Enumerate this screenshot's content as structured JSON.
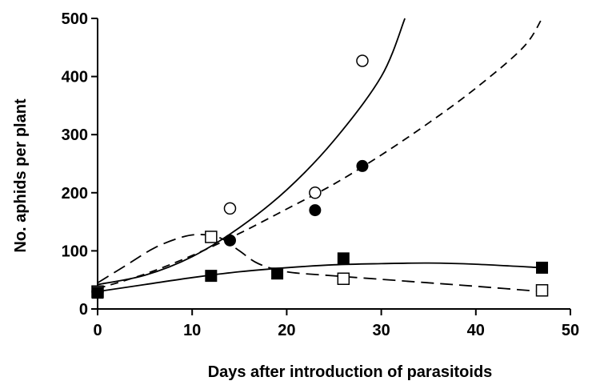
{
  "chart_data": {
    "type": "scatter",
    "title": "",
    "xlabel": "Days after introduction of parasitoids",
    "ylabel": "No. aphids per plant",
    "xlim": [
      0,
      50
    ],
    "ylim": [
      0,
      500
    ],
    "x_ticks": [
      0,
      10,
      20,
      30,
      40,
      50
    ],
    "y_ticks": [
      0,
      100,
      200,
      300,
      400,
      500
    ],
    "x_tick_labels": [
      "0",
      "10",
      "20",
      "30",
      "40",
      "50"
    ],
    "y_tick_labels": [
      "0",
      "100",
      "200",
      "300",
      "400",
      "500"
    ],
    "grid": false,
    "legend": "none",
    "series": [
      {
        "marker": "open-circle",
        "line_style": "solid",
        "color": "#000000",
        "points": [
          {
            "x": 0,
            "y": 30
          },
          {
            "x": 14,
            "y": 173
          },
          {
            "x": 23,
            "y": 200
          },
          {
            "x": 28,
            "y": 427
          }
        ],
        "fit": [
          [
            0,
            42
          ],
          [
            5,
            58
          ],
          [
            10,
            90
          ],
          [
            15,
            140
          ],
          [
            20,
            205
          ],
          [
            25,
            290
          ],
          [
            30,
            400
          ],
          [
            32.5,
            500
          ]
        ]
      },
      {
        "marker": "filled-circle",
        "line_style": "dashed",
        "color": "#000000",
        "points": [
          {
            "x": 0,
            "y": 30
          },
          {
            "x": 14,
            "y": 118
          },
          {
            "x": 23,
            "y": 170
          },
          {
            "x": 28,
            "y": 246
          }
        ],
        "fit": [
          [
            0,
            35
          ],
          [
            5,
            60
          ],
          [
            10,
            92
          ],
          [
            15,
            130
          ],
          [
            20,
            172
          ],
          [
            25,
            215
          ],
          [
            30,
            265
          ],
          [
            35,
            320
          ],
          [
            40,
            380
          ],
          [
            45,
            450
          ],
          [
            47,
            500
          ]
        ]
      },
      {
        "marker": "open-square",
        "line_style": "long-dashed",
        "color": "#000000",
        "points": [
          {
            "x": 0,
            "y": 30
          },
          {
            "x": 12,
            "y": 124
          },
          {
            "x": 26,
            "y": 52
          },
          {
            "x": 47,
            "y": 32
          }
        ],
        "fit": [
          [
            0,
            45
          ],
          [
            3,
            75
          ],
          [
            6,
            105
          ],
          [
            9,
            124
          ],
          [
            11,
            128
          ],
          [
            13,
            122
          ],
          [
            15,
            100
          ],
          [
            17,
            78
          ],
          [
            20,
            64
          ],
          [
            25,
            57
          ],
          [
            30,
            51
          ],
          [
            35,
            45
          ],
          [
            40,
            39
          ],
          [
            47,
            30
          ]
        ]
      },
      {
        "marker": "filled-square",
        "line_style": "solid",
        "color": "#000000",
        "points": [
          {
            "x": 0,
            "y": 28
          },
          {
            "x": 12,
            "y": 57
          },
          {
            "x": 19,
            "y": 61
          },
          {
            "x": 26,
            "y": 87
          },
          {
            "x": 47,
            "y": 71
          }
        ],
        "fit": [
          [
            0,
            30
          ],
          [
            5,
            42
          ],
          [
            10,
            54
          ],
          [
            15,
            64
          ],
          [
            20,
            71
          ],
          [
            25,
            76
          ],
          [
            30,
            78
          ],
          [
            35,
            79
          ],
          [
            40,
            77
          ],
          [
            47,
            71
          ]
        ]
      }
    ]
  }
}
